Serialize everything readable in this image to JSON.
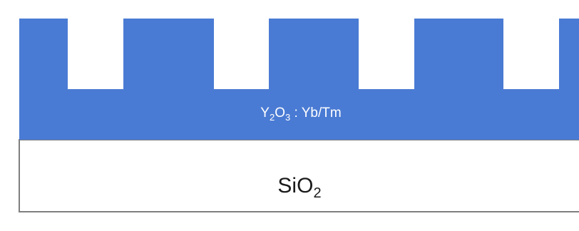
{
  "diagram": {
    "layers": {
      "grating": {
        "name": "Y2O3:Yb/Tm grating layer",
        "label": {
          "base1": "Y",
          "sub1": "2",
          "base2": "O",
          "sub2": "3",
          "suffix": " : Yb/Tm"
        },
        "fill_color": "#4a7bd4",
        "text_color": "#ffffff"
      },
      "substrate": {
        "name": "SiO2 substrate",
        "label": {
          "base": "SiO",
          "sub": "2"
        },
        "fill_color": "#ffffff",
        "text_color": "#1a1a1a"
      }
    },
    "grating_period_count": 5,
    "outline_color": "#7f7f7f"
  }
}
